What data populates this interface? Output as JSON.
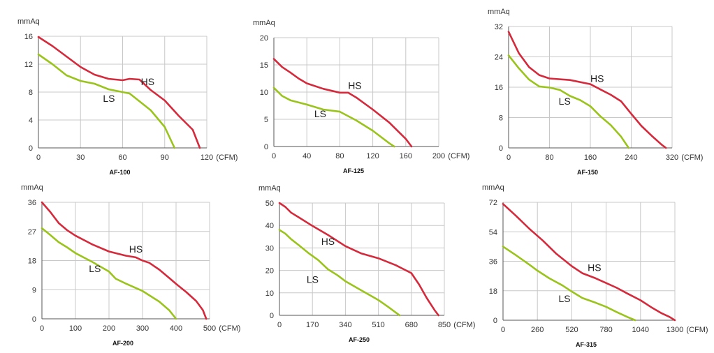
{
  "colors": {
    "hs": "#d42a3c",
    "ls": "#9ac31c",
    "grid": "#c8c8c8",
    "axis": "#555555"
  },
  "chart_data": [
    {
      "type": "line",
      "title": "AF-100",
      "ylabel": "mmAq",
      "xunit": "(CFM)",
      "xlim": [
        0,
        120
      ],
      "ylim": [
        0,
        16
      ],
      "xticks": [
        0,
        30,
        60,
        90,
        120
      ],
      "yticks": [
        0,
        4,
        8,
        12,
        16
      ],
      "grid": true,
      "series": [
        {
          "name": "HS",
          "x": [
            0,
            10,
            20,
            30,
            40,
            50,
            60,
            65,
            72,
            80,
            90,
            100,
            110,
            115
          ],
          "y": [
            15.9,
            14.6,
            13.1,
            11.6,
            10.5,
            9.9,
            9.7,
            9.9,
            9.8,
            8.3,
            6.8,
            4.6,
            2.6,
            0
          ]
        },
        {
          "name": "LS",
          "x": [
            0,
            10,
            20,
            30,
            40,
            50,
            60,
            65,
            70,
            80,
            90,
            97
          ],
          "y": [
            13.4,
            12.0,
            10.4,
            9.6,
            9.2,
            8.4,
            8.0,
            7.8,
            7.0,
            5.4,
            3.0,
            0
          ]
        }
      ],
      "labels": [
        {
          "text": "HS",
          "x": 73,
          "y": 9.0
        },
        {
          "text": "LS",
          "x": 46,
          "y": 6.6
        }
      ]
    },
    {
      "type": "line",
      "title": "AF-125",
      "ylabel": "mmAq",
      "xunit": "(CFM)",
      "xlim": [
        0,
        200
      ],
      "ylim": [
        0,
        20
      ],
      "xticks": [
        0,
        40,
        80,
        120,
        160,
        200
      ],
      "yticks": [
        0,
        5,
        10,
        15,
        20
      ],
      "grid": true,
      "series": [
        {
          "name": "HS",
          "x": [
            0,
            10,
            20,
            30,
            40,
            60,
            80,
            90,
            100,
            120,
            140,
            160,
            167
          ],
          "y": [
            16.1,
            14.6,
            13.6,
            12.5,
            11.6,
            10.6,
            9.9,
            9.9,
            9.0,
            6.8,
            4.4,
            1.4,
            0
          ]
        },
        {
          "name": "LS",
          "x": [
            0,
            10,
            20,
            40,
            60,
            80,
            100,
            120,
            140,
            146
          ],
          "y": [
            10.8,
            9.3,
            8.5,
            7.7,
            6.8,
            6.4,
            4.8,
            2.9,
            0.6,
            0
          ]
        }
      ],
      "labels": [
        {
          "text": "HS",
          "x": 90,
          "y": 10.6
        },
        {
          "text": "LS",
          "x": 49,
          "y": 5.4
        }
      ]
    },
    {
      "type": "line",
      "title": "AF-150",
      "ylabel": "mmAq",
      "xunit": "(CFM)",
      "xlim": [
        0,
        320
      ],
      "ylim": [
        0,
        32
      ],
      "xticks": [
        0,
        80,
        160,
        240,
        320
      ],
      "yticks": [
        0,
        8,
        16,
        24,
        32
      ],
      "grid": true,
      "series": [
        {
          "name": "HS",
          "x": [
            0,
            20,
            40,
            60,
            80,
            120,
            160,
            180,
            200,
            220,
            240,
            260,
            280,
            300,
            308
          ],
          "y": [
            30.6,
            25.0,
            21.3,
            19.2,
            18.3,
            17.9,
            16.8,
            15.4,
            14.0,
            12.3,
            9.0,
            5.8,
            3.2,
            0.8,
            0
          ]
        },
        {
          "name": "LS",
          "x": [
            0,
            20,
            40,
            60,
            80,
            100,
            120,
            140,
            160,
            180,
            200,
            220,
            235
          ],
          "y": [
            24.4,
            21.0,
            18.0,
            16.2,
            15.9,
            15.3,
            13.7,
            12.6,
            11.0,
            8.3,
            6.0,
            3.0,
            0
          ]
        }
      ],
      "labels": [
        {
          "text": "HS",
          "x": 160,
          "y": 17.4
        },
        {
          "text": "LS",
          "x": 98,
          "y": 11.4
        }
      ]
    },
    {
      "type": "line",
      "title": "AF-200",
      "ylabel": "mmAq",
      "xunit": "(CFM)",
      "xlim": [
        0,
        500
      ],
      "ylim": [
        0,
        36
      ],
      "xticks": [
        0,
        100,
        200,
        300,
        400,
        500
      ],
      "yticks": [
        0,
        9,
        18,
        27,
        36
      ],
      "grid": true,
      "series": [
        {
          "name": "HS",
          "x": [
            0,
            25,
            50,
            75,
            100,
            150,
            200,
            250,
            280,
            300,
            320,
            350,
            380,
            400,
            430,
            460,
            480,
            490
          ],
          "y": [
            36.0,
            33.0,
            29.6,
            27.4,
            25.7,
            23.0,
            20.8,
            19.5,
            19.0,
            18.0,
            17.3,
            15.2,
            12.6,
            10.8,
            8.3,
            5.5,
            2.7,
            0
          ]
        },
        {
          "name": "LS",
          "x": [
            0,
            25,
            50,
            75,
            100,
            150,
            200,
            220,
            250,
            300,
            350,
            380,
            400
          ],
          "y": [
            28.0,
            25.9,
            23.7,
            22.1,
            20.3,
            17.6,
            14.6,
            12.4,
            10.9,
            8.6,
            5.3,
            2.6,
            0
          ]
        }
      ],
      "labels": [
        {
          "text": "HS",
          "x": 260,
          "y": 20.5
        },
        {
          "text": "LS",
          "x": 140,
          "y": 14.4
        }
      ]
    },
    {
      "type": "line",
      "title": "AF-250",
      "ylabel": "mmAq",
      "xunit": "(CFM)",
      "xlim": [
        0,
        850
      ],
      "ylim": [
        0,
        50
      ],
      "xticks": [
        0,
        170,
        340,
        510,
        680,
        850
      ],
      "yticks": [
        0,
        10,
        20,
        30,
        40,
        50
      ],
      "grid": true,
      "series": [
        {
          "name": "HS",
          "x": [
            0,
            30,
            60,
            100,
            170,
            250,
            340,
            420,
            510,
            600,
            680,
            720,
            760,
            800,
            820
          ],
          "y": [
            50.0,
            48.3,
            45.7,
            43.6,
            39.8,
            35.8,
            30.8,
            27.6,
            25.4,
            22.3,
            18.8,
            13.7,
            7.6,
            2.3,
            0
          ]
        },
        {
          "name": "LS",
          "x": [
            0,
            30,
            60,
            100,
            150,
            200,
            250,
            300,
            340,
            400,
            470,
            510,
            560,
            600,
            620
          ],
          "y": [
            38.0,
            36.4,
            33.9,
            31.2,
            27.7,
            24.6,
            20.5,
            17.8,
            15.2,
            12.2,
            8.8,
            6.8,
            3.8,
            1.2,
            0
          ]
        }
      ],
      "labels": [
        {
          "text": "HS",
          "x": 215,
          "y": 31.3
        },
        {
          "text": "LS",
          "x": 140,
          "y": 14.4
        }
      ]
    },
    {
      "type": "line",
      "title": "AF-315",
      "ylabel": "mmAq",
      "xunit": "(CFM)",
      "xlim": [
        0,
        1300
      ],
      "ylim": [
        0,
        72
      ],
      "xticks": [
        0,
        260,
        520,
        780,
        1040,
        1300
      ],
      "yticks": [
        0,
        18,
        36,
        54,
        72
      ],
      "grid": true,
      "series": [
        {
          "name": "HS",
          "x": [
            0,
            100,
            200,
            300,
            400,
            520,
            600,
            700,
            780,
            860,
            940,
            1040,
            1120,
            1200,
            1260,
            1300
          ],
          "y": [
            71.0,
            63.6,
            55.8,
            48.7,
            40.8,
            33.0,
            28.7,
            25.6,
            22.7,
            19.8,
            16.3,
            12.2,
            8.0,
            4.2,
            2.0,
            0
          ]
        },
        {
          "name": "LS",
          "x": [
            0,
            100,
            200,
            260,
            350,
            450,
            520,
            600,
            700,
            780,
            860,
            940,
            1000
          ],
          "y": [
            45.0,
            39.6,
            33.9,
            30.3,
            25.6,
            21.2,
            17.5,
            13.6,
            10.7,
            8.2,
            5.0,
            2.0,
            0
          ]
        }
      ],
      "labels": [
        {
          "text": "HS",
          "x": 640,
          "y": 30.0
        },
        {
          "text": "LS",
          "x": 420,
          "y": 11.0
        }
      ]
    }
  ]
}
